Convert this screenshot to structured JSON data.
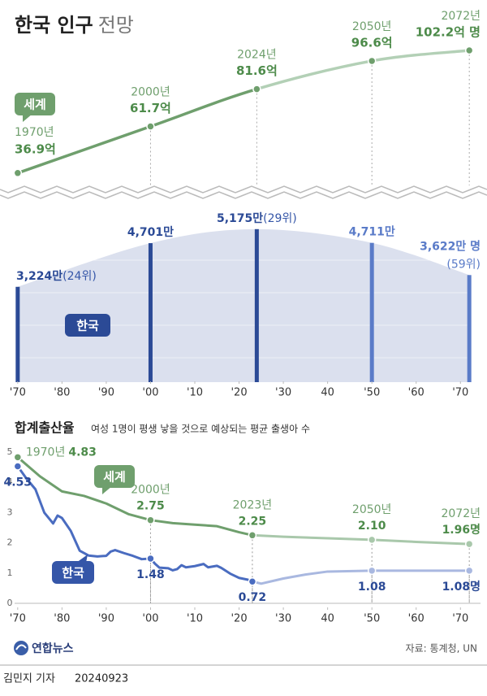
{
  "header": {
    "title": "한국 인구",
    "title_suffix": "전망"
  },
  "footer": {
    "logo": "연합뉴스",
    "source": "자료: 통계청, UN",
    "byline": "김민지 기자",
    "date": "20240923"
  },
  "chart_data": [
    {
      "type": "line",
      "x": [
        1970,
        2000,
        2024,
        2050,
        2072
      ],
      "x_labels": [
        "1970년",
        "2000년",
        "2024년",
        "2050년",
        "2072년"
      ],
      "projection_from": 2024,
      "xlim": [
        1966,
        2076
      ],
      "ylim": [
        0,
        110
      ],
      "series": [
        {
          "name": "세계",
          "color": "#6f9f6d",
          "projected_color": "#b3d0b6",
          "values": [
            36.9,
            61.7,
            81.6,
            96.6,
            102.2
          ],
          "value_labels": [
            "36.9억",
            "61.7억",
            "81.6억",
            "96.6억",
            "102.2억 명"
          ]
        }
      ]
    },
    {
      "type": "bar",
      "x": [
        1970,
        2000,
        2024,
        2050,
        2072
      ],
      "xlim": [
        1966,
        2076
      ],
      "ylim": [
        0,
        5500
      ],
      "xticks": [
        {
          "value": 1970,
          "label": "'70"
        },
        {
          "value": 1980,
          "label": "'80"
        },
        {
          "value": 1990,
          "label": "'90"
        },
        {
          "value": 2000,
          "label": "'00"
        },
        {
          "value": 2010,
          "label": "'10"
        },
        {
          "value": 2020,
          "label": "'20"
        },
        {
          "value": 2030,
          "label": "'30"
        },
        {
          "value": 2040,
          "label": "40"
        },
        {
          "value": 2050,
          "label": "'50"
        },
        {
          "value": 2060,
          "label": "'60"
        },
        {
          "value": 2070,
          "label": "'70"
        }
      ],
      "area_color": "#d5dbeb",
      "series": [
        {
          "name": "한국",
          "color": "#2b4a96",
          "colors": [
            "#2b4a96",
            "#2b4a96",
            "#2b4a96",
            "#5a7bc8",
            "#5a7bc8"
          ],
          "values": [
            3224,
            4701,
            5175,
            4711,
            3622
          ],
          "value_labels": [
            "3,224만",
            "4,701만",
            "5,175만",
            "4,711만",
            "3,622만 명"
          ],
          "rank_labels": [
            "(24위)",
            null,
            "(29위)",
            null,
            "(59위)"
          ]
        }
      ]
    },
    {
      "type": "line",
      "title": "합계출산율",
      "subtitle": "여성 1명이 평생 낳을 것으로 예상되는 평균 출생아 수",
      "projection_from": 2023,
      "xlim": [
        1966,
        2076
      ],
      "ylim": [
        0,
        5
      ],
      "yticks": [
        0,
        1,
        2,
        3,
        4,
        5
      ],
      "grid": false,
      "xticks": [
        {
          "value": 1970,
          "label": "'70"
        },
        {
          "value": 1980,
          "label": "'80"
        },
        {
          "value": 1990,
          "label": "'90"
        },
        {
          "value": 2000,
          "label": "'00"
        },
        {
          "value": 2010,
          "label": "'10"
        },
        {
          "value": 2020,
          "label": "'20"
        },
        {
          "value": 2030,
          "label": "'30"
        },
        {
          "value": 2040,
          "label": "40"
        },
        {
          "value": 2050,
          "label": "'50"
        },
        {
          "value": 2060,
          "label": "'60"
        },
        {
          "value": 2070,
          "label": "'70"
        }
      ],
      "series": [
        {
          "name": "세계",
          "color": "#6f9f6d",
          "projected_color": "#a9c8ab",
          "x": [
            1970,
            1975,
            1980,
            1985,
            1990,
            1995,
            2000,
            2005,
            2010,
            2015,
            2020,
            2023,
            2030,
            2040,
            2050,
            2060,
            2072
          ],
          "values": [
            4.83,
            4.2,
            3.7,
            3.55,
            3.3,
            2.95,
            2.75,
            2.65,
            2.6,
            2.55,
            2.35,
            2.25,
            2.2,
            2.15,
            2.1,
            2.03,
            1.96
          ],
          "labels": [
            {
              "x": 1970,
              "value": 4.83,
              "year_label": "1970년",
              "value_label": "4.83"
            },
            {
              "x": 2000,
              "value": 2.75,
              "year_label": "2000년",
              "value_label": "2.75"
            },
            {
              "x": 2023,
              "value": 2.25,
              "year_label": "2023년",
              "value_label": "2.25"
            },
            {
              "x": 2050,
              "value": 2.1,
              "year_label": "2050년",
              "value_label": "2.10"
            },
            {
              "x": 2072,
              "value": 1.96,
              "year_label": "2072년",
              "value_label": "1.96명"
            }
          ]
        },
        {
          "name": "한국",
          "color": "#4a6cc0",
          "projected_color": "#a9b8e0",
          "x": [
            1970,
            1972,
            1974,
            1976,
            1978,
            1979,
            1980,
            1982,
            1984,
            1986,
            1988,
            1990,
            1991,
            1992,
            1994,
            1996,
            1998,
            2000,
            2001,
            2002,
            2004,
            2005,
            2006,
            2007,
            2008,
            2010,
            2012,
            2013,
            2015,
            2016,
            2018,
            2020,
            2022,
            2023,
            2025,
            2030,
            2035,
            2040,
            2050,
            2060,
            2072
          ],
          "values": [
            4.53,
            4.12,
            3.77,
            3.0,
            2.64,
            2.9,
            2.82,
            2.39,
            1.74,
            1.58,
            1.55,
            1.57,
            1.71,
            1.76,
            1.66,
            1.57,
            1.46,
            1.48,
            1.31,
            1.18,
            1.16,
            1.09,
            1.13,
            1.26,
            1.19,
            1.23,
            1.3,
            1.19,
            1.24,
            1.17,
            0.98,
            0.84,
            0.78,
            0.72,
            0.65,
            0.82,
            0.95,
            1.05,
            1.08,
            1.08,
            1.08
          ],
          "labels": [
            {
              "x": 1970,
              "value": 4.53,
              "value_label": "4.53"
            },
            {
              "x": 2000,
              "value": 1.48,
              "value_label": "1.48"
            },
            {
              "x": 2023,
              "value": 0.72,
              "value_label": "0.72"
            },
            {
              "x": 2050,
              "value": 1.08,
              "value_label": "1.08"
            },
            {
              "x": 2072,
              "value": 1.08,
              "value_label": "1.08명"
            }
          ]
        }
      ]
    }
  ]
}
